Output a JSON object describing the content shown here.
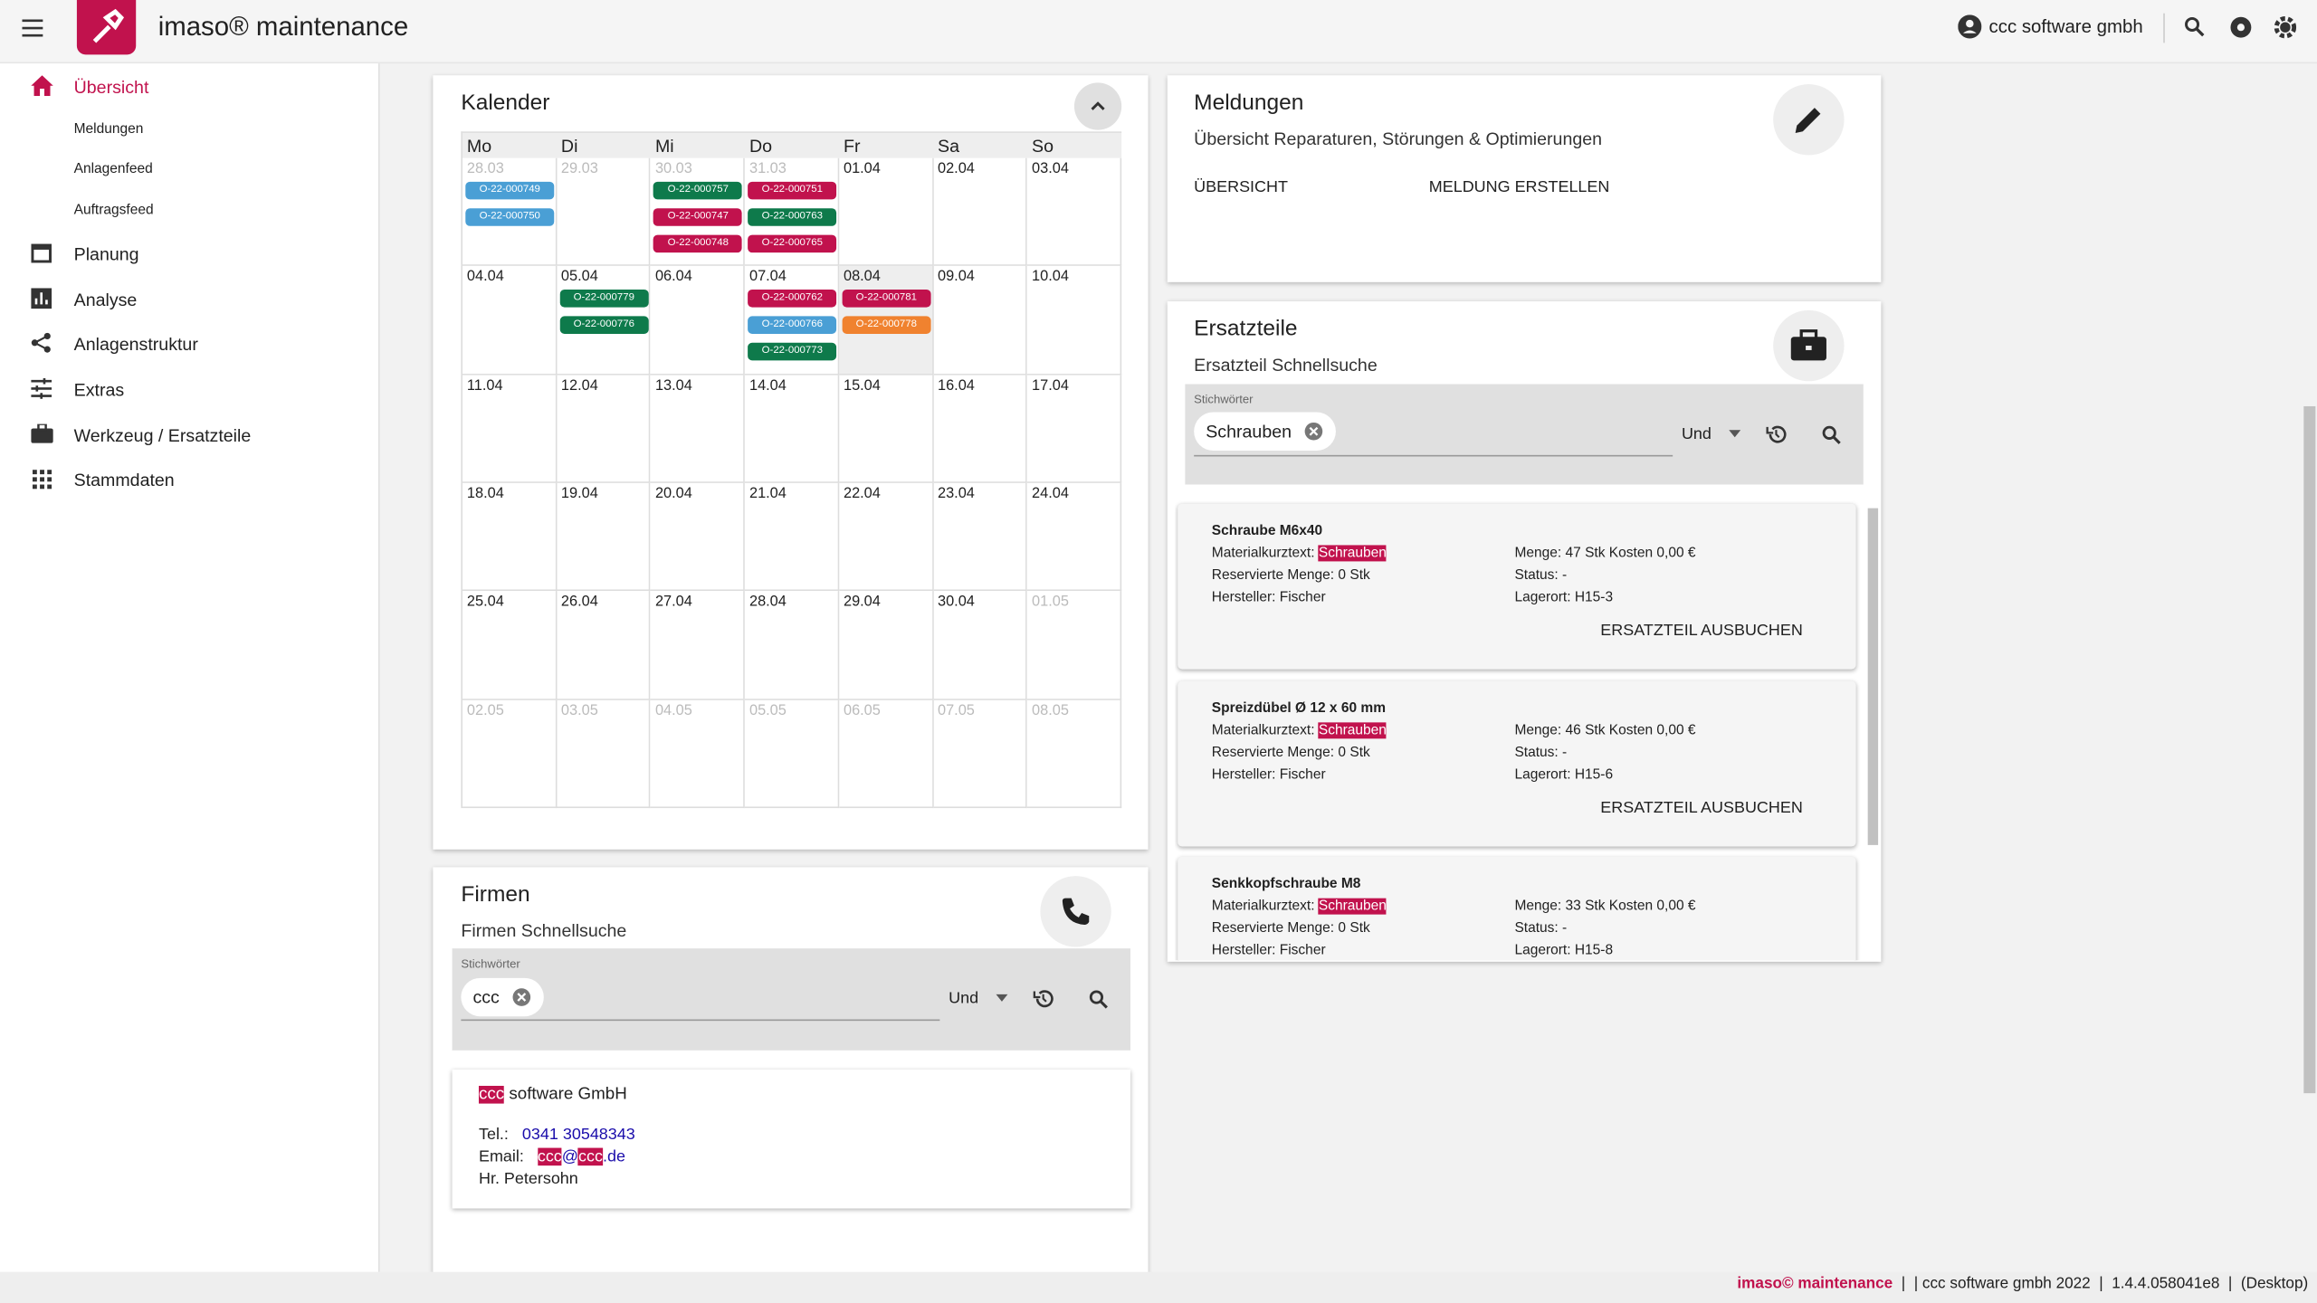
{
  "header": {
    "title": "imaso® maintenance",
    "user": "ccc software gmbh"
  },
  "nav": {
    "items": [
      {
        "label": "Übersicht",
        "children": [
          "Meldungen",
          "Anlagenfeed",
          "Auftragsfeed"
        ]
      },
      {
        "label": "Planung"
      },
      {
        "label": "Analyse"
      },
      {
        "label": "Anlagenstruktur"
      },
      {
        "label": "Extras"
      },
      {
        "label": "Werkzeug / Ersatzteile"
      },
      {
        "label": "Stammdaten"
      }
    ]
  },
  "calendar": {
    "title": "Kalender",
    "weekdays": [
      "Mo",
      "Di",
      "Mi",
      "Do",
      "Fr",
      "Sa",
      "So"
    ],
    "weeks": [
      [
        {
          "date": "28.03",
          "muted": true,
          "events": [
            {
              "label": "O-22-000749",
              "color": "#4a9fd5"
            },
            {
              "label": "O-22-000750",
              "color": "#4a9fd5"
            }
          ]
        },
        {
          "date": "29.03",
          "muted": true,
          "events": []
        },
        {
          "date": "30.03",
          "muted": true,
          "events": [
            {
              "label": "O-22-000757",
              "color": "#0e7a4b"
            },
            {
              "label": "O-22-000747",
              "color": "#c1124d"
            },
            {
              "label": "O-22-000748",
              "color": "#c1124d"
            }
          ]
        },
        {
          "date": "31.03",
          "muted": true,
          "events": [
            {
              "label": "O-22-000751",
              "color": "#c1124d"
            },
            {
              "label": "O-22-000763",
              "color": "#0e7a4b"
            },
            {
              "label": "O-22-000765",
              "color": "#c1124d"
            }
          ]
        },
        {
          "date": "01.04",
          "events": []
        },
        {
          "date": "02.04",
          "events": []
        },
        {
          "date": "03.04",
          "events": []
        }
      ],
      [
        {
          "date": "04.04",
          "events": []
        },
        {
          "date": "05.04",
          "events": [
            {
              "label": "O-22-000779",
              "color": "#0e7a4b"
            },
            {
              "label": "O-22-000776",
              "color": "#0e7a4b"
            }
          ]
        },
        {
          "date": "06.04",
          "events": []
        },
        {
          "date": "07.04",
          "events": [
            {
              "label": "O-22-000762",
              "color": "#c1124d"
            },
            {
              "label": "O-22-000766",
              "color": "#4a9fd5"
            },
            {
              "label": "O-22-000773",
              "color": "#0e7a4b"
            }
          ]
        },
        {
          "date": "08.04",
          "today": true,
          "events": [
            {
              "label": "O-22-000781",
              "color": "#c1124d"
            },
            {
              "label": "O-22-000778",
              "color": "#f0822f"
            }
          ]
        },
        {
          "date": "09.04",
          "events": []
        },
        {
          "date": "10.04",
          "events": []
        }
      ],
      [
        {
          "date": "11.04",
          "events": []
        },
        {
          "date": "12.04",
          "events": []
        },
        {
          "date": "13.04",
          "events": []
        },
        {
          "date": "14.04",
          "events": []
        },
        {
          "date": "15.04",
          "events": []
        },
        {
          "date": "16.04",
          "events": []
        },
        {
          "date": "17.04",
          "events": []
        }
      ],
      [
        {
          "date": "18.04",
          "events": []
        },
        {
          "date": "19.04",
          "events": []
        },
        {
          "date": "20.04",
          "events": []
        },
        {
          "date": "21.04",
          "events": []
        },
        {
          "date": "22.04",
          "events": []
        },
        {
          "date": "23.04",
          "events": []
        },
        {
          "date": "24.04",
          "events": []
        }
      ],
      [
        {
          "date": "25.04",
          "events": []
        },
        {
          "date": "26.04",
          "events": []
        },
        {
          "date": "27.04",
          "events": []
        },
        {
          "date": "28.04",
          "events": []
        },
        {
          "date": "29.04",
          "events": []
        },
        {
          "date": "30.04",
          "events": []
        },
        {
          "date": "01.05",
          "muted": true,
          "events": []
        }
      ],
      [
        {
          "date": "02.05",
          "muted": true,
          "events": []
        },
        {
          "date": "03.05",
          "muted": true,
          "events": []
        },
        {
          "date": "04.05",
          "muted": true,
          "events": []
        },
        {
          "date": "05.05",
          "muted": true,
          "events": []
        },
        {
          "date": "06.05",
          "muted": true,
          "events": []
        },
        {
          "date": "07.05",
          "muted": true,
          "events": []
        },
        {
          "date": "08.05",
          "muted": true,
          "events": []
        }
      ]
    ]
  },
  "messages": {
    "title": "Meldungen",
    "subtitle": "Übersicht Reparaturen, Störungen & Optimierungen",
    "actions": [
      "ÜBERSICHT",
      "MELDUNG ERSTELLEN"
    ]
  },
  "spare_parts": {
    "title": "Ersatzteile",
    "subtitle": "Ersatzteil Schnellsuche",
    "search": {
      "label": "Stichwörter",
      "chip": "Schrauben",
      "operator": "Und"
    },
    "results": [
      {
        "name": "Schraube M6x40",
        "material_label": "Materialkurztext:",
        "material": "Schrauben",
        "reserved": "Reservierte Menge: 0 Stk",
        "manufacturer": "Hersteller: Fischer",
        "quantity": "Menge: 47 Stk Kosten 0,00 €",
        "status": "Status: -",
        "location": "Lagerort: H15-3",
        "action": "ERSATZTEIL AUSBUCHEN"
      },
      {
        "name": "Spreizdübel Ø 12 x 60 mm",
        "material_label": "Materialkurztext:",
        "material": "Schrauben",
        "reserved": "Reservierte Menge: 0 Stk",
        "manufacturer": "Hersteller: Fischer",
        "quantity": "Menge: 46 Stk Kosten 0,00 €",
        "status": "Status: -",
        "location": "Lagerort: H15-6",
        "action": "ERSATZTEIL AUSBUCHEN"
      },
      {
        "name": "Senkkopfschraube M8",
        "material_label": "Materialkurztext:",
        "material": "Schrauben",
        "reserved": "Reservierte Menge: 0 Stk",
        "manufacturer": "Hersteller: Fischer",
        "quantity": "Menge: 33 Stk Kosten 0,00 €",
        "status": "Status: -",
        "location": "Lagerort: H15-8"
      }
    ]
  },
  "companies": {
    "title": "Firmen",
    "subtitle": "Firmen Schnellsuche",
    "search": {
      "label": "Stichwörter",
      "chip": "ccc",
      "operator": "Und"
    },
    "result": {
      "name_match": "ccc",
      "name_rest": "software GmbH",
      "tel_label": "Tel.:",
      "tel": "0341 30548343",
      "email_label": "Email:",
      "email_parts": [
        "ccc",
        "@",
        "ccc",
        ".de"
      ],
      "contact": "Hr. Petersohn"
    }
  },
  "footer": {
    "brand": "imaso© maintenance",
    "info": "|  | ccc software gmbh 2022  |  1.4.4.058041e8  |  (Desktop)"
  }
}
